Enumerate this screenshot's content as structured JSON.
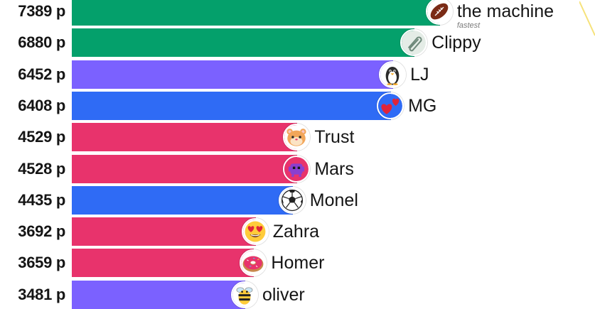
{
  "chart_data": {
    "type": "bar",
    "orientation": "horizontal",
    "title": "",
    "xlabel": "",
    "ylabel": "",
    "xlim": [
      0,
      7700
    ],
    "unit_suffix": " p",
    "categories": [
      "the machine",
      "Clippy",
      "LJ",
      "MG",
      "Trust",
      "Mars",
      "Monel",
      "Zahra",
      "Homer",
      "oliver"
    ],
    "values": [
      7389,
      6880,
      6452,
      6408,
      4529,
      4528,
      4435,
      3692,
      3659,
      3481
    ],
    "score_labels": [
      "7389 p",
      "6880 p",
      "6452 p",
      "6408 p",
      "4529 p",
      "4528 p",
      "4435 p",
      "3692 p",
      "3659 p",
      "3481 p"
    ],
    "bar_colors": [
      "#04a06b",
      "#04a06b",
      "#7b61ff",
      "#2f6bf5",
      "#e8336c",
      "#e8336c",
      "#2f6bf5",
      "#e8336c",
      "#e8336c",
      "#7b61ff"
    ],
    "avatar_icons": [
      "football-icon",
      "paperclip-icon",
      "penguin-icon",
      "hearts-icon",
      "hamster-icon",
      "alien-monster-icon",
      "soccer-ball-icon",
      "heart-eyes-face-icon",
      "donut-icon",
      "bee-icon"
    ],
    "badges": [
      {
        "index": 0,
        "text": "fastest"
      }
    ],
    "grid": false,
    "legend": "none"
  }
}
